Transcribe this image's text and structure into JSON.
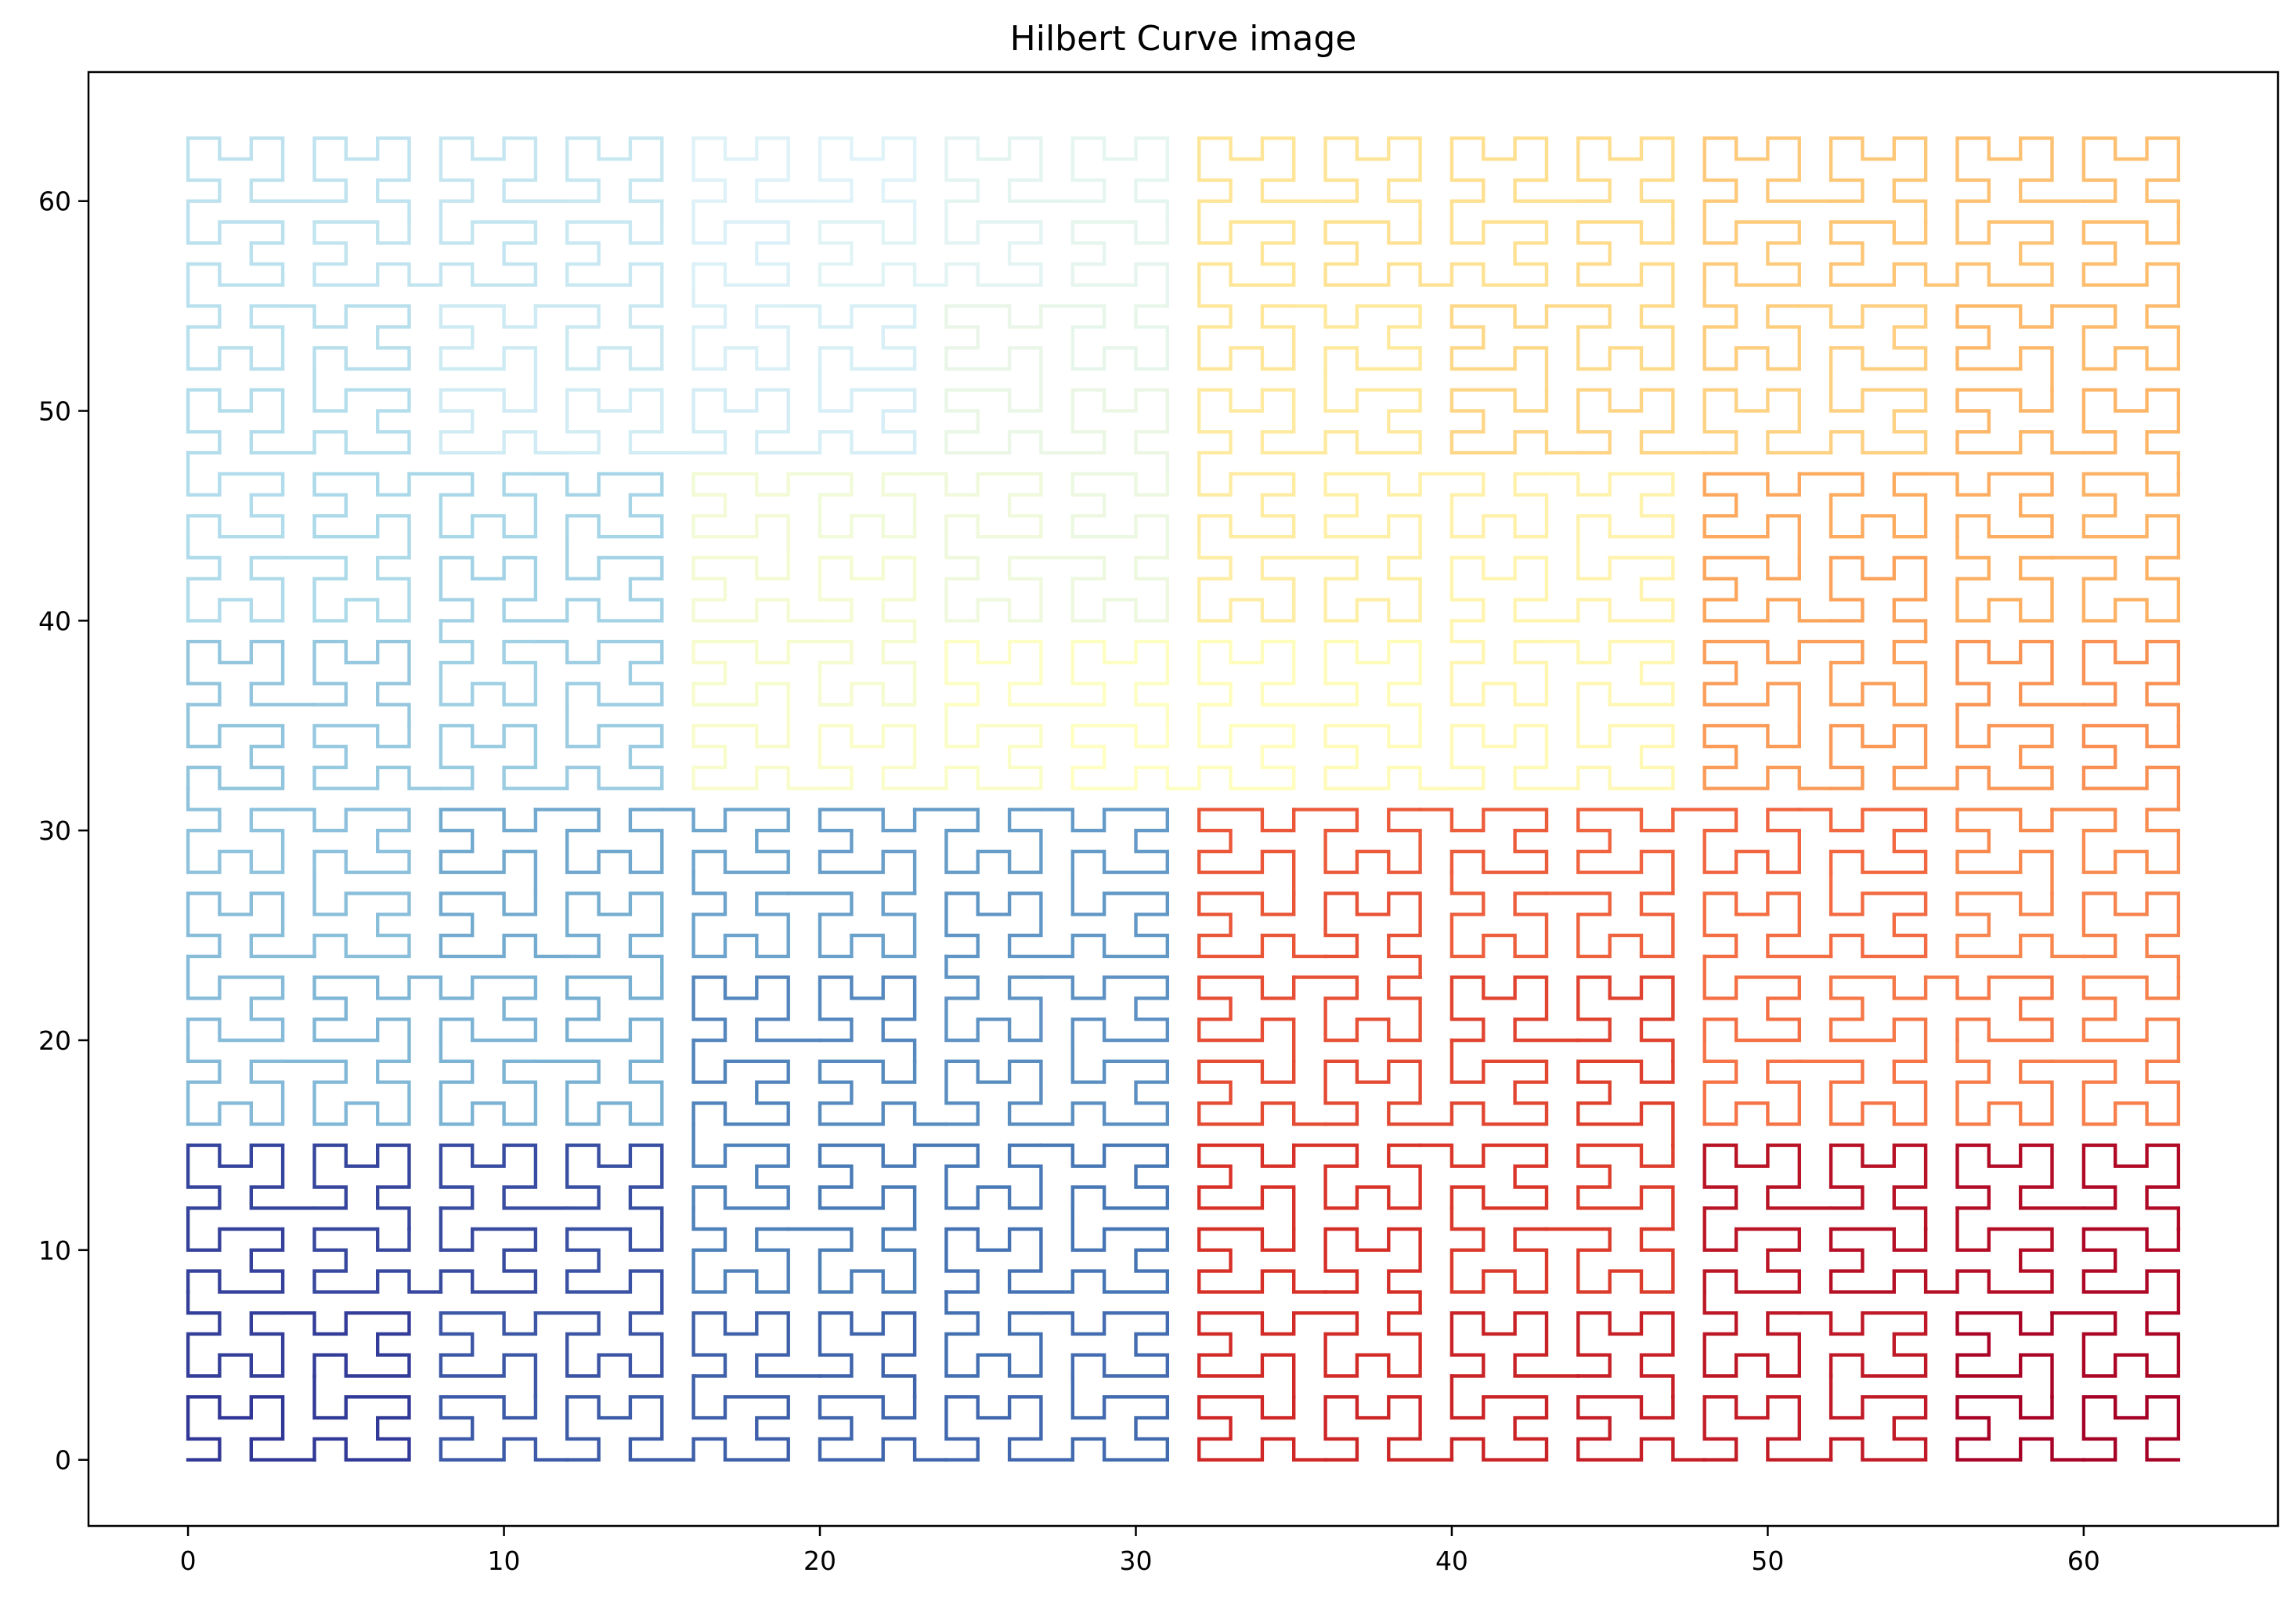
{
  "chart_data": {
    "type": "line",
    "title": "Hilbert Curve image",
    "xlabel": "",
    "ylabel": "",
    "curve": {
      "kind": "hilbert",
      "order": 6,
      "grid_size": 64,
      "point_count": 4096
    },
    "x_range_of_points": [
      0,
      63
    ],
    "y_range_of_points": [
      0,
      63
    ],
    "xlim": [
      -3.15,
      66.15
    ],
    "ylim": [
      -3.15,
      66.15
    ],
    "xticks": [
      0,
      10,
      20,
      30,
      40,
      50,
      60
    ],
    "yticks": [
      0,
      10,
      20,
      30,
      40,
      50,
      60
    ],
    "colormap": "RdYlBu (reversed)",
    "color_stops": [
      "#313695",
      "#4575b4",
      "#74add1",
      "#abd9e9",
      "#e0f3f8",
      "#ffffbf",
      "#fee090",
      "#fdae61",
      "#f46d43",
      "#d73027",
      "#a50026"
    ],
    "grid": false,
    "legend": "none"
  }
}
